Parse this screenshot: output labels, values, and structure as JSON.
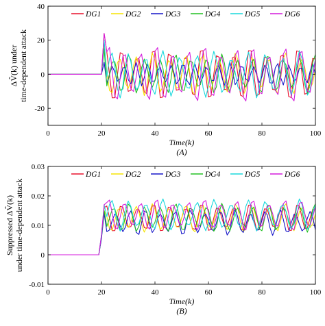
{
  "chart_data": [
    {
      "type": "line",
      "panel_caption": "(A)",
      "ylabel_lines": [
        "ΔV̂(k) under",
        "time-dependent attack"
      ],
      "xlabel": "Time(k)",
      "xlim": [
        0,
        100
      ],
      "ylim": [
        -30,
        40
      ],
      "xticks": [
        "0",
        "20",
        "40",
        "60",
        "80",
        "100"
      ],
      "yticks": [
        "-20",
        "0",
        "20",
        "40"
      ],
      "legend": {
        "placement": "top-center",
        "columns": 6
      },
      "attack_start": 20,
      "series": [
        {
          "name": "DG1",
          "color": "#e8102c",
          "shape": "oscillation",
          "base": 0,
          "amp": 16,
          "period": 6.0,
          "phase": 0.0,
          "peak_first": 24
        },
        {
          "name": "DG2",
          "color": "#f5e400",
          "shape": "oscillation",
          "base": 0,
          "amp": 13,
          "period": 6.2,
          "phase": 1.0,
          "peak_first": 18
        },
        {
          "name": "DG3",
          "color": "#1515c8",
          "shape": "oscillation",
          "base": 0,
          "amp": 7,
          "period": 4.4,
          "phase": 2.0,
          "peak_first": 7
        },
        {
          "name": "DG4",
          "color": "#22c022",
          "shape": "oscillation",
          "base": 0,
          "amp": 12,
          "period": 5.8,
          "phase": 3.0,
          "peak_first": 15
        },
        {
          "name": "DG5",
          "color": "#18d8dc",
          "shape": "oscillation",
          "base": 0,
          "amp": 14,
          "period": 6.4,
          "phase": 4.2,
          "peak_first": 20
        },
        {
          "name": "DG6",
          "color": "#d41adc",
          "shape": "oscillation",
          "base": 0,
          "amp": 17,
          "period": 6.0,
          "phase": 5.1,
          "peak_first": 24
        }
      ]
    },
    {
      "type": "line",
      "panel_caption": "(B)",
      "ylabel_lines": [
        "Suppressed ΔV̂(k)",
        "under time-dependent attack"
      ],
      "xlabel": "Time(k)",
      "xlim": [
        0,
        100
      ],
      "ylim": [
        -0.01,
        0.03
      ],
      "xticks": [
        "0",
        "20",
        "40",
        "60",
        "80",
        "100"
      ],
      "yticks": [
        "-0.01",
        "0",
        "0.01",
        "0.02",
        "0.03"
      ],
      "legend": {
        "placement": "top-center",
        "columns": 6
      },
      "attack_start": 20,
      "series": [
        {
          "name": "DG1",
          "color": "#e8102c",
          "shape": "oscillation",
          "base": 0.0125,
          "amp": 0.005,
          "period": 6.0,
          "phase": 0.0,
          "peak_first": 0.016
        },
        {
          "name": "DG2",
          "color": "#f5e400",
          "shape": "oscillation",
          "base": 0.0125,
          "amp": 0.005,
          "period": 6.2,
          "phase": 1.0,
          "peak_first": 0.015
        },
        {
          "name": "DG3",
          "color": "#1515c8",
          "shape": "oscillation",
          "base": 0.011,
          "amp": 0.0045,
          "period": 5.6,
          "phase": 2.0,
          "peak_first": 0.014
        },
        {
          "name": "DG4",
          "color": "#22c022",
          "shape": "oscillation",
          "base": 0.0125,
          "amp": 0.005,
          "period": 5.8,
          "phase": 3.0,
          "peak_first": 0.015
        },
        {
          "name": "DG5",
          "color": "#18d8dc",
          "shape": "oscillation",
          "base": 0.0135,
          "amp": 0.0055,
          "period": 6.4,
          "phase": 4.2,
          "peak_first": 0.017
        },
        {
          "name": "DG6",
          "color": "#d41adc",
          "shape": "oscillation",
          "base": 0.0135,
          "amp": 0.0055,
          "period": 6.0,
          "phase": 5.1,
          "peak_first": 0.017
        }
      ]
    }
  ]
}
